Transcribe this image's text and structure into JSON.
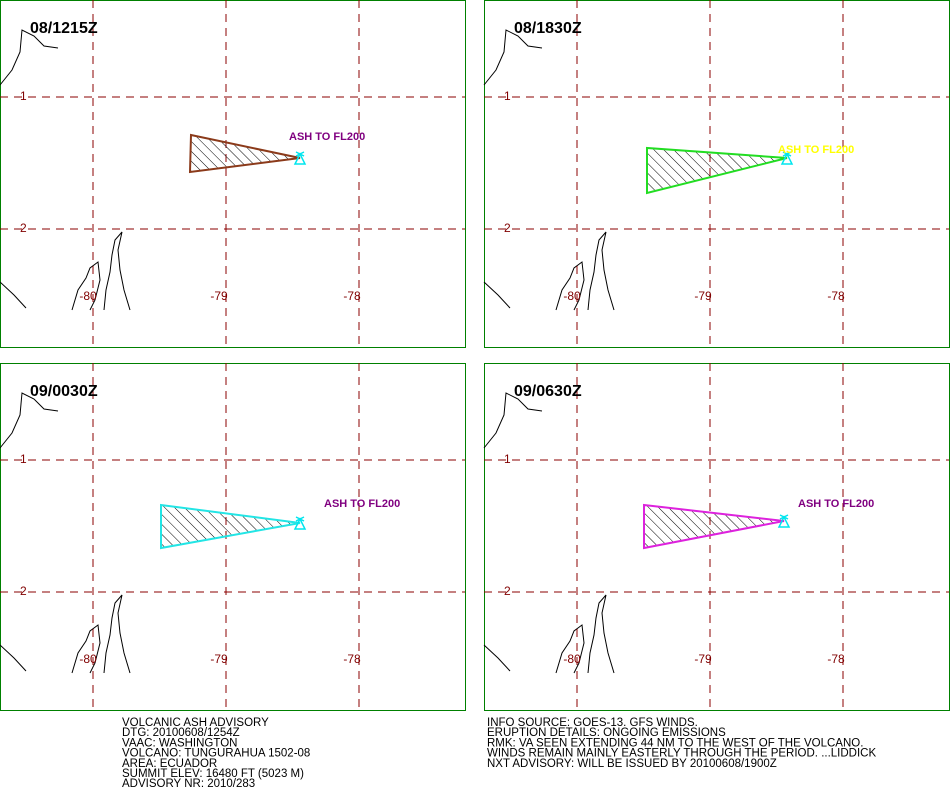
{
  "panels": [
    {
      "time": "08/1215Z",
      "ash_label": "ASH TO FL200",
      "polygon_color": "#8b3a1a",
      "label_color": "#800080"
    },
    {
      "time": "08/1830Z",
      "ash_label": "ASH TO FL200",
      "polygon_color": "#22dd22",
      "label_color": "#ffff00"
    },
    {
      "time": "09/0030Z",
      "ash_label": "ASH TO FL200",
      "polygon_color": "#22e5e5",
      "label_color": "#800080"
    },
    {
      "time": "09/0630Z",
      "ash_label": "ASH TO FL200",
      "polygon_color": "#dd22dd",
      "label_color": "#800080"
    }
  ],
  "grid_labels": {
    "lat": [
      "-1",
      "-2"
    ],
    "lon": [
      "-80",
      "-79",
      "-78"
    ]
  },
  "advisory": {
    "left": [
      "VOLCANIC ASH ADVISORY",
      "DTG: 20100608/1254Z",
      "VAAC: WASHINGTON",
      "VOLCANO: TUNGURAHUA 1502-08",
      "AREA: ECUADOR",
      "SUMMIT ELEV: 16480 FT (5023 M)",
      "ADVISORY NR: 2010/283"
    ],
    "right": [
      "INFO SOURCE: GOES-13. GFS WINDS.",
      "ERUPTION DETAILS: ONGOING EMISSIONS",
      "RMK: VA SEEN EXTENDING 44 NM TO THE WEST OF THE VOLCANO.",
      "WINDS REMAIN MAINLY EASTERLY THROUGH THE PERIOD. ...LIDDICK",
      "NXT ADVISORY: WILL BE ISSUED BY 20100608/1900Z"
    ]
  }
}
